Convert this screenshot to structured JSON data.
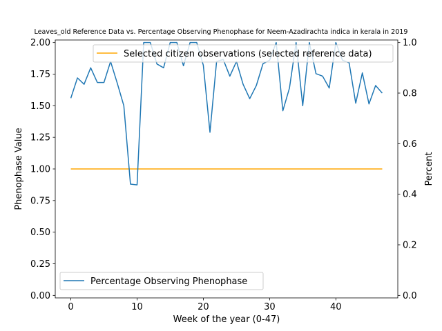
{
  "chart_data": {
    "type": "line",
    "title": "Leaves_old Reference Data vs. Percentage Observing Phenophase for Neem-Azadirachta indica in kerala in 2019",
    "xlabel": "Week of the year (0-47)",
    "ylabel_left": "Phenophase Value",
    "ylabel_right": "Percent",
    "xlim": [
      -2.35,
      49.35
    ],
    "ylim_left": [
      -0.02,
      2.02
    ],
    "ylim_right": [
      -0.01,
      1.01
    ],
    "x_ticks": [
      0,
      10,
      20,
      30,
      40
    ],
    "y_ticks_left": [
      "0.00",
      "0.25",
      "0.50",
      "0.75",
      "1.00",
      "1.25",
      "1.50",
      "1.75",
      "2.00"
    ],
    "y_ticks_right": [
      "0.0",
      "0.2",
      "0.4",
      "0.6",
      "0.8",
      "1.0"
    ],
    "series": [
      {
        "name": "Selected citizen observations (selected reference data)",
        "axis": "left",
        "color": "#ffa500",
        "x": [
          0,
          47
        ],
        "values": [
          1.0,
          1.0
        ]
      },
      {
        "name": "Percentage Observing Phenophase",
        "axis": "right",
        "color": "#1f77b4",
        "x": [
          0,
          1,
          2,
          3,
          4,
          5,
          6,
          7,
          8,
          9,
          10,
          11,
          12,
          13,
          14,
          15,
          16,
          17,
          18,
          19,
          20,
          21,
          22,
          23,
          24,
          25,
          26,
          27,
          28,
          29,
          30,
          31,
          32,
          33,
          34,
          35,
          36,
          37,
          38,
          39,
          40,
          41,
          42,
          43,
          44,
          45,
          46,
          47
        ],
        "values": [
          0.78,
          0.86,
          0.835,
          0.9,
          0.842,
          0.842,
          0.925,
          0.84,
          0.75,
          0.44,
          0.437,
          1.0,
          1.0,
          0.915,
          0.9,
          1.0,
          1.0,
          0.908,
          1.0,
          1.0,
          0.91,
          0.645,
          0.925,
          0.933,
          0.867,
          0.925,
          0.835,
          0.778,
          0.83,
          0.916,
          0.93,
          1.0,
          0.73,
          0.82,
          1.0,
          0.75,
          1.0,
          0.877,
          0.867,
          0.82,
          1.0,
          0.93,
          0.92,
          0.76,
          0.88,
          0.757,
          0.83,
          0.8
        ]
      }
    ],
    "legends": [
      {
        "series": 0,
        "placement": "upper-right"
      },
      {
        "series": 1,
        "placement": "lower-left"
      }
    ]
  }
}
